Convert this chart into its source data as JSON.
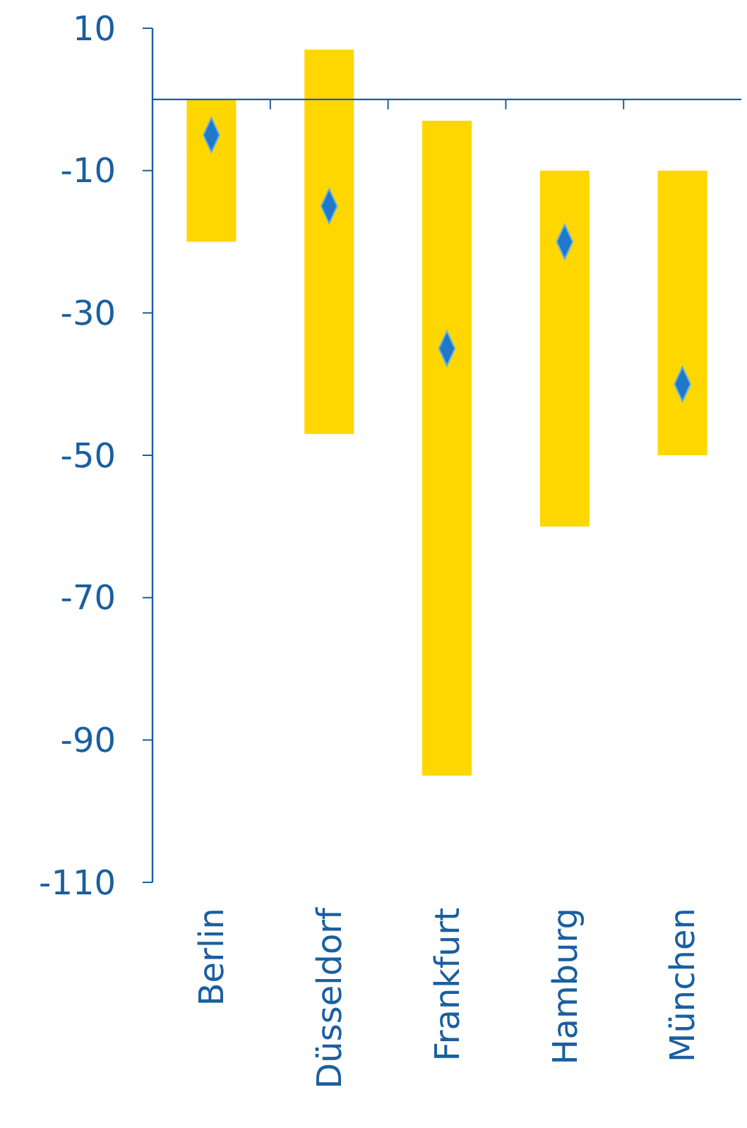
{
  "chart_data": {
    "type": "bar",
    "categories": [
      "Berlin",
      "Düsseldorf",
      "Frankfurt",
      "Hamburg",
      "München"
    ],
    "series": [
      {
        "color": "#ffd700",
        "values": [
          20,
          54,
          92,
          50,
          40
        ],
        "base": [
          -20,
          -47,
          -95,
          -60,
          -50
        ]
      },
      {
        "type": "scatter",
        "color": "#1f78c8",
        "x": [
          "Berlin",
          "Düsseldorf",
          "Frankfurt",
          "Hamburg",
          "München"
        ],
        "values": [
          -5,
          -15,
          -35,
          -20,
          -40
        ],
        "marker": "diamond"
      }
    ],
    "ylim": [
      -110,
      10
    ],
    "yticks": [
      10,
      -10,
      -30,
      -50,
      -70,
      -90,
      -110
    ],
    "ref_lines": [
      {
        "axis": "y",
        "value": 0,
        "color": "#1a5fa0"
      }
    ],
    "grid": false
  }
}
